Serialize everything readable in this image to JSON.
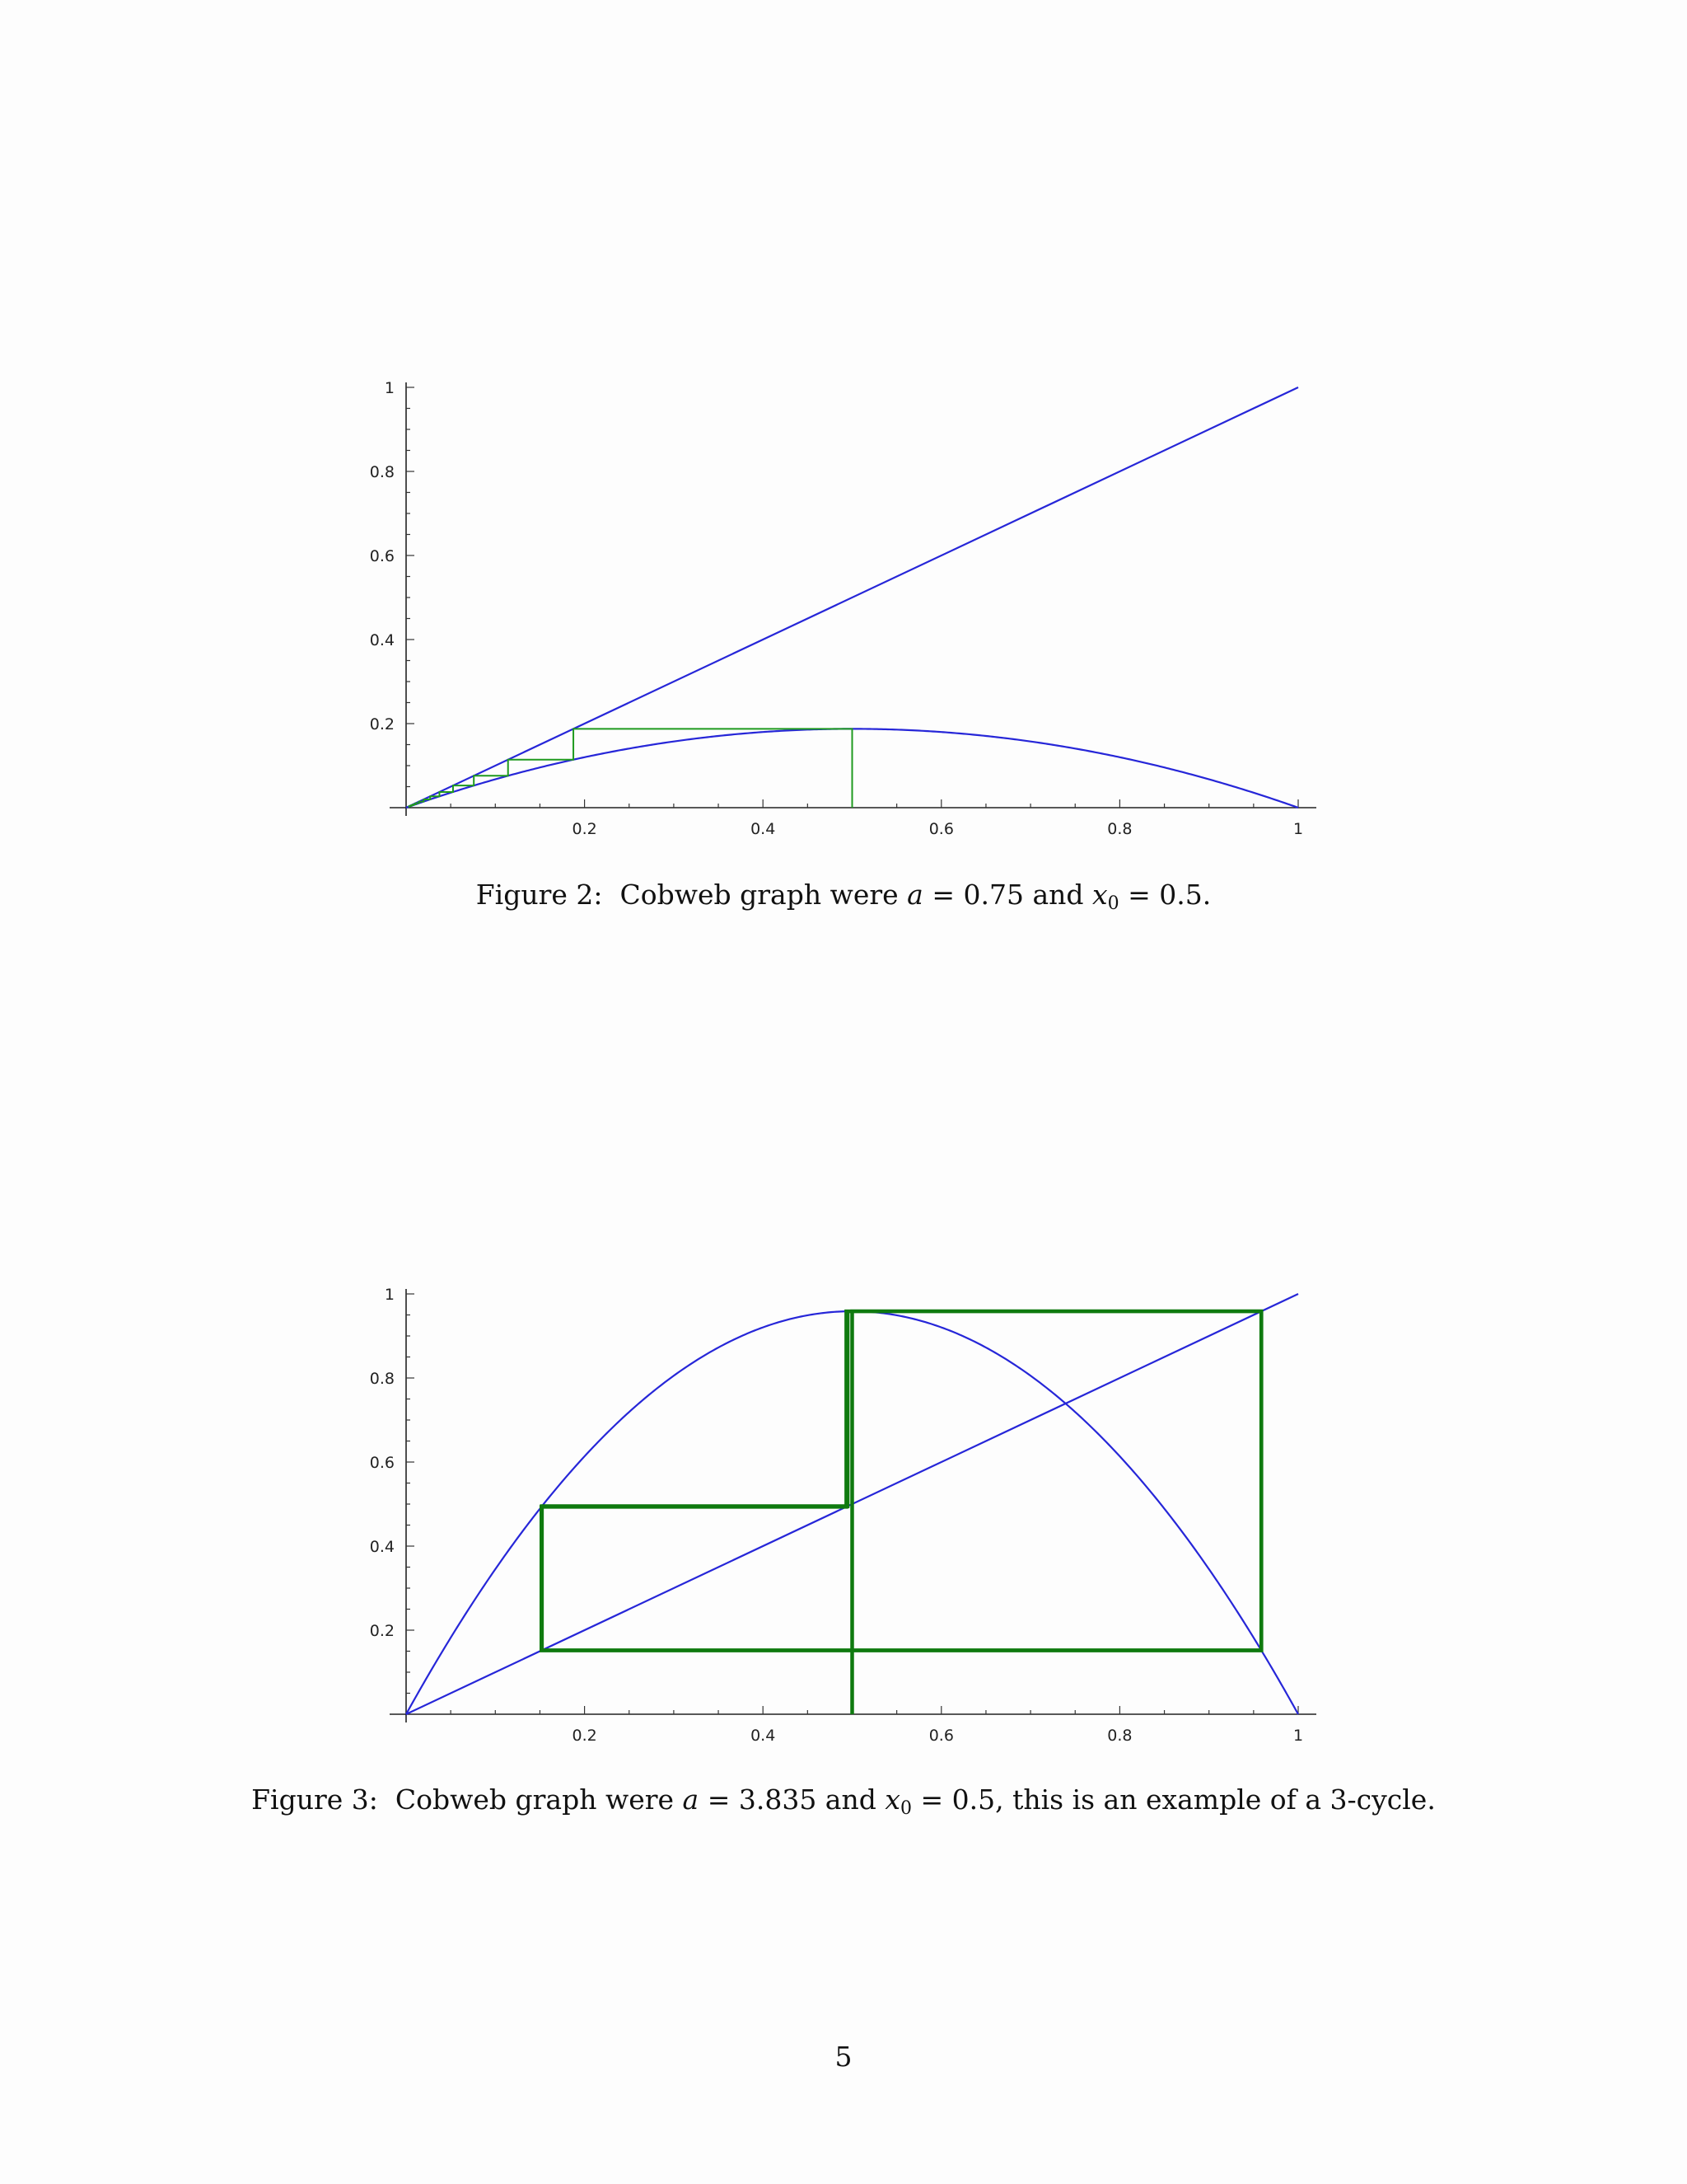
{
  "chart_data": [
    {
      "type": "line",
      "title": "",
      "xlabel": "",
      "ylabel": "",
      "xlim": [
        0,
        1
      ],
      "ylim": [
        0,
        1
      ],
      "x_ticks": [
        "0.2",
        "0.4",
        "0.6",
        "0.8",
        "1"
      ],
      "y_ticks": [
        "0.2",
        "0.4",
        "0.6",
        "0.8",
        "1"
      ],
      "a": 0.75,
      "x0": 0.5,
      "series": [
        {
          "kind": "diagonal",
          "x": [
            0,
            1
          ],
          "y": [
            0,
            1
          ],
          "color": "#2626d8"
        },
        {
          "kind": "map",
          "function": "a*x*(1-x)",
          "a": 0.75,
          "color": "#2626d8"
        },
        {
          "kind": "cobweb",
          "a": 0.75,
          "x0": 0.5,
          "iterations": 14,
          "color": "#1f9a1f"
        }
      ]
    },
    {
      "type": "line",
      "title": "",
      "xlabel": "",
      "ylabel": "",
      "xlim": [
        0,
        1
      ],
      "ylim": [
        0,
        1
      ],
      "x_ticks": [
        "0.2",
        "0.4",
        "0.6",
        "0.8",
        "1"
      ],
      "y_ticks": [
        "0.2",
        "0.4",
        "0.6",
        "0.8",
        "1"
      ],
      "a": 3.835,
      "x0": 0.5,
      "series": [
        {
          "kind": "diagonal",
          "x": [
            0,
            1
          ],
          "y": [
            0,
            1
          ],
          "color": "#2626d8"
        },
        {
          "kind": "map",
          "function": "a*x*(1-x)",
          "a": 3.835,
          "color": "#2626d8"
        },
        {
          "kind": "cobweb",
          "a": 3.835,
          "x0": 0.5,
          "iterations": 30,
          "color": "#0f7a0f"
        }
      ]
    }
  ],
  "captions": [
    {
      "label": "Figure 2:",
      "text_before": "Cobweb graph were ",
      "var_a": "a",
      "eq1": " = 0.75 and ",
      "var_x": "x",
      "sub": "0",
      "eq2": " = 0.5."
    },
    {
      "label": "Figure 3:",
      "text_before": "Cobweb graph were ",
      "var_a": "a",
      "eq1": " = 3.835 and ",
      "var_x": "x",
      "sub": "0",
      "eq2": " = 0.5, this is an example of a 3-cycle."
    }
  ],
  "page_number": "5"
}
